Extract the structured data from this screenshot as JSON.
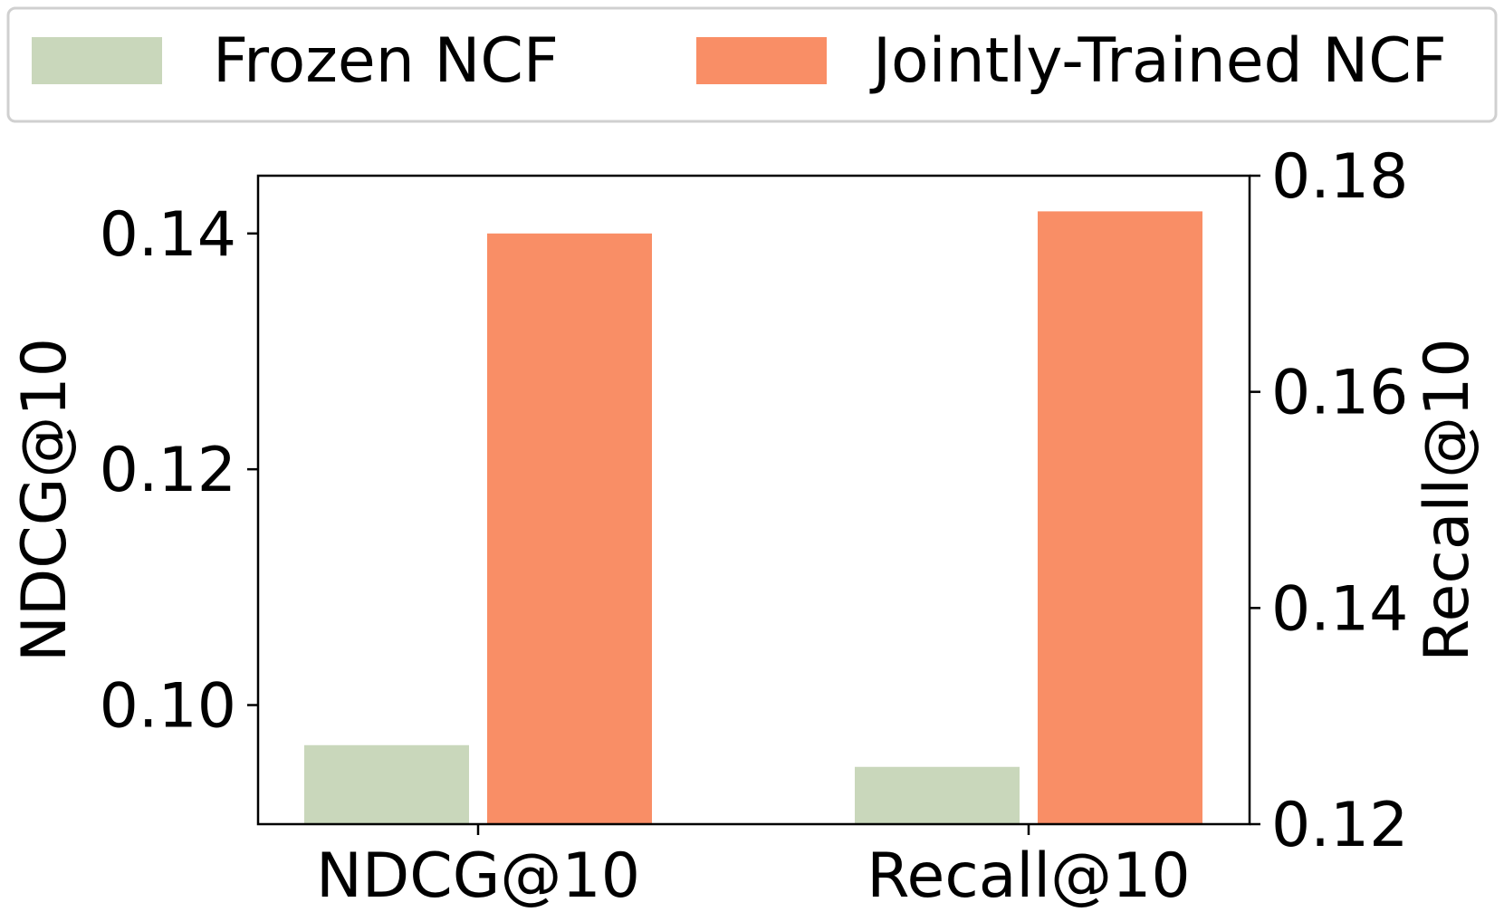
{
  "chart_data": {
    "type": "bar",
    "categories": [
      "NDCG@10",
      "Recall@10"
    ],
    "series": [
      {
        "name": "Frozen NCF",
        "color": "#c9d7bb",
        "values": [
          0.0966,
          0.1253
        ]
      },
      {
        "name": "Jointly-Trained NCF",
        "color": "#f98e66",
        "values": [
          0.14,
          0.1767
        ]
      }
    ],
    "value_axis_for_category": [
      "left",
      "right"
    ],
    "ylabel_left": "NDCG@10",
    "ylabel_right": "Recall@10",
    "ylim_left": [
      0.0899,
      0.1449
    ],
    "ylim_right": [
      0.12,
      0.18
    ],
    "yticks_left": [
      "0.10",
      "0.12",
      "0.14"
    ],
    "yticks_right": [
      "0.12",
      "0.14",
      "0.16",
      "0.18"
    ],
    "legend_position": "top, outside plot",
    "grid": false
  }
}
